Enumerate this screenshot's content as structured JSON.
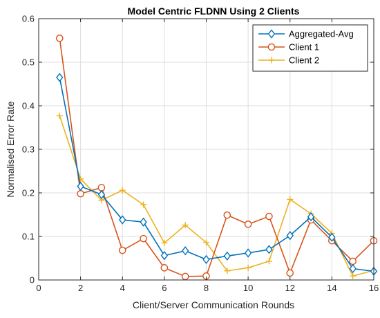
{
  "chart_data": {
    "type": "line",
    "title": "Model Centric FLDNN Using 2 Clients",
    "xlabel": "Client/Server Communication Rounds",
    "ylabel": "Normalised Error Rate",
    "xlim": [
      0,
      16
    ],
    "ylim": [
      0,
      0.6
    ],
    "xticks": [
      0,
      2,
      4,
      6,
      8,
      10,
      12,
      14,
      16
    ],
    "xtick_labels": [
      "0",
      "2",
      "4",
      "6",
      "8",
      "10",
      "12",
      "14",
      "16"
    ],
    "yticks": [
      0,
      0.1,
      0.2,
      0.3,
      0.4,
      0.5,
      0.6
    ],
    "ytick_labels": [
      "0",
      "0.1",
      "0.2",
      "0.3",
      "0.4",
      "0.5",
      "0.6"
    ],
    "grid": true,
    "legend_position": "top-right",
    "x": [
      1,
      2,
      3,
      4,
      5,
      6,
      7,
      8,
      9,
      10,
      11,
      12,
      13,
      14,
      15,
      16
    ],
    "series": [
      {
        "name": "Aggregated-Avg",
        "color": "#0072BD",
        "marker": "diamond",
        "values": [
          0.465,
          0.215,
          0.196,
          0.138,
          0.133,
          0.056,
          0.067,
          0.047,
          0.055,
          0.062,
          0.07,
          0.102,
          0.145,
          0.098,
          0.026,
          0.02
        ]
      },
      {
        "name": "Client 1",
        "color": "#D95319",
        "marker": "circle",
        "values": [
          0.555,
          0.198,
          0.212,
          0.068,
          0.095,
          0.028,
          0.008,
          0.009,
          0.149,
          0.128,
          0.146,
          0.016,
          0.138,
          0.09,
          0.043,
          0.09
        ]
      },
      {
        "name": "Client 2",
        "color": "#EDB120",
        "marker": "plus",
        "values": [
          0.377,
          0.232,
          0.183,
          0.206,
          0.173,
          0.085,
          0.126,
          0.086,
          0.021,
          0.028,
          0.043,
          0.185,
          0.152,
          0.107,
          0.009,
          0.022
        ]
      }
    ]
  }
}
